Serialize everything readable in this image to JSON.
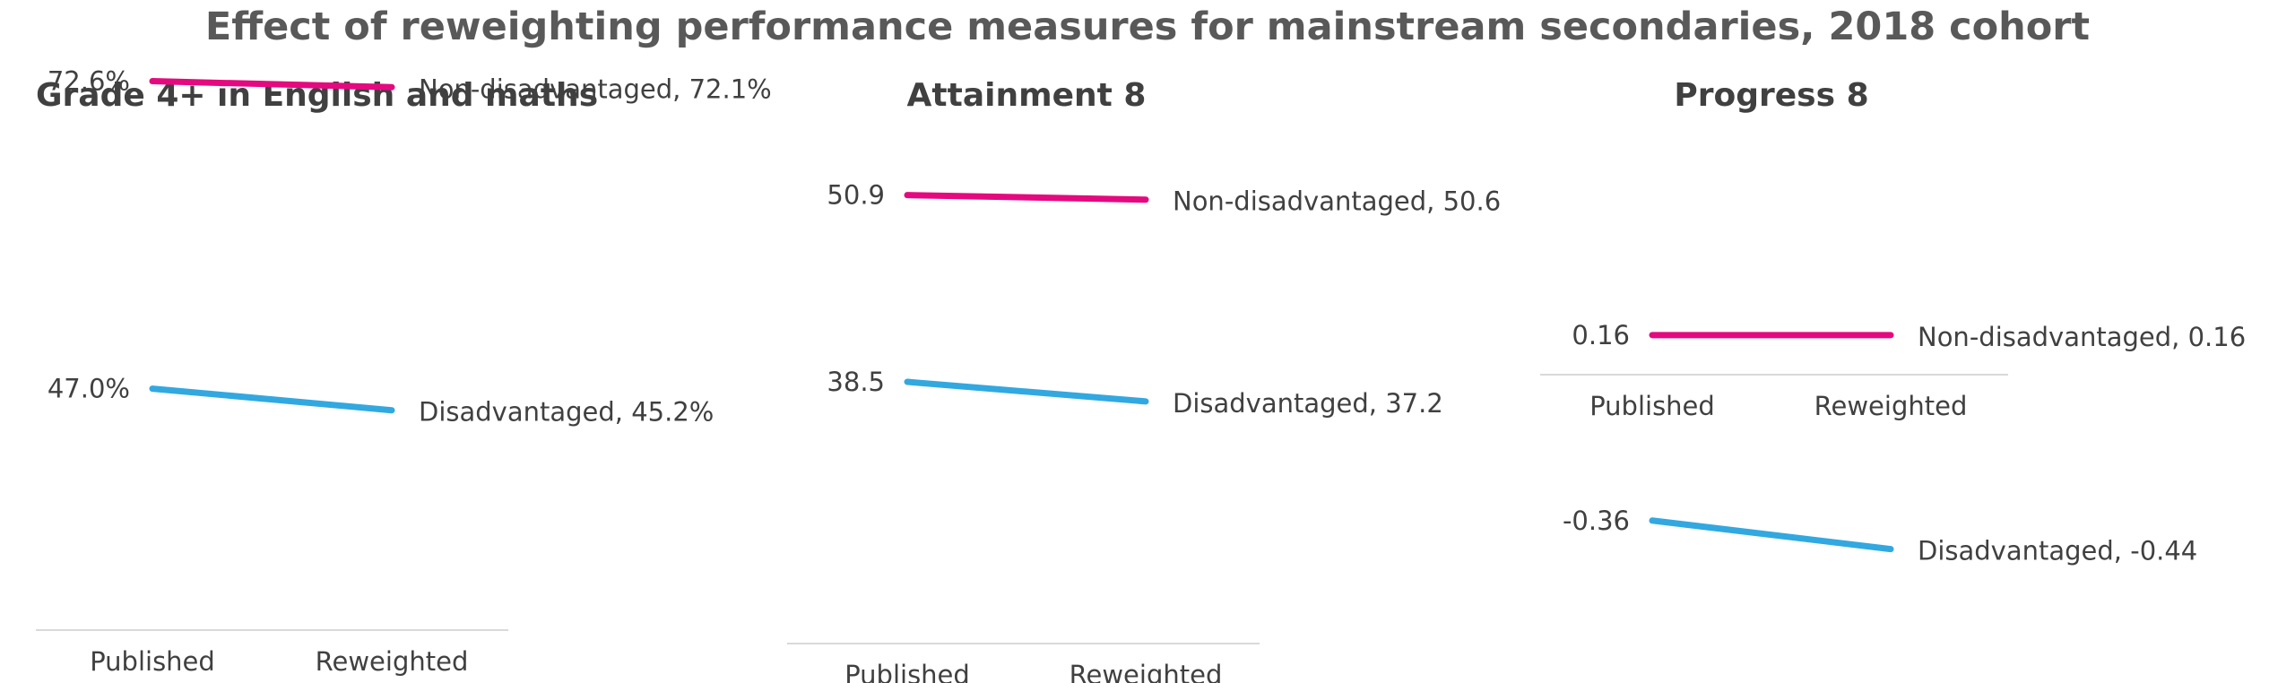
{
  "chart_data": {
    "title": "Effect of reweighting performance measures for mainstream secondaries, 2018 cohort",
    "categories": [
      "Published",
      "Reweighted"
    ],
    "colors": {
      "non_disadvantaged": "#e5097f",
      "disadvantaged": "#32a8e0"
    },
    "panels": [
      {
        "type": "line",
        "title": "Grade 4+ in English and maths",
        "x": [
          "Published",
          "Reweighted"
        ],
        "series": [
          {
            "name": "Non-disadvantaged",
            "values": [
              72.6,
              72.1
            ],
            "start_label": "72.6%",
            "end_label": "Non-disadvantaged, 72.1%"
          },
          {
            "name": "Disadvantaged",
            "values": [
              47.0,
              45.2
            ],
            "start_label": "47.0%",
            "end_label": "Disadvantaged, 45.2%"
          }
        ],
        "ylim": [
          0,
          80
        ]
      },
      {
        "type": "line",
        "title": "Attainment 8",
        "x": [
          "Published",
          "Reweighted"
        ],
        "series": [
          {
            "name": "Non-disadvantaged",
            "values": [
              50.9,
              50.6
            ],
            "start_label": "50.9",
            "end_label": "Non-disadvantaged,  50.6"
          },
          {
            "name": "Disadvantaged",
            "values": [
              38.5,
              37.2
            ],
            "start_label": "38.5",
            "end_label": "Disadvantaged,  37.2"
          }
        ],
        "ylim": [
          0,
          60
        ]
      },
      {
        "type": "line",
        "title": "Progress 8",
        "x": [
          "Published",
          "Reweighted"
        ],
        "series": [
          {
            "name": "Non-disadvantaged",
            "values": [
              0.16,
              0.16
            ],
            "start_label": "0.16",
            "end_label": "Non-disadvantaged,  0.16"
          },
          {
            "name": "Disadvantaged",
            "values": [
              -0.36,
              -0.44
            ],
            "start_label": "-0.36",
            "end_label": "Disadvantaged, -0.44"
          }
        ],
        "ylim": [
          -0.5,
          0.3
        ]
      }
    ]
  }
}
